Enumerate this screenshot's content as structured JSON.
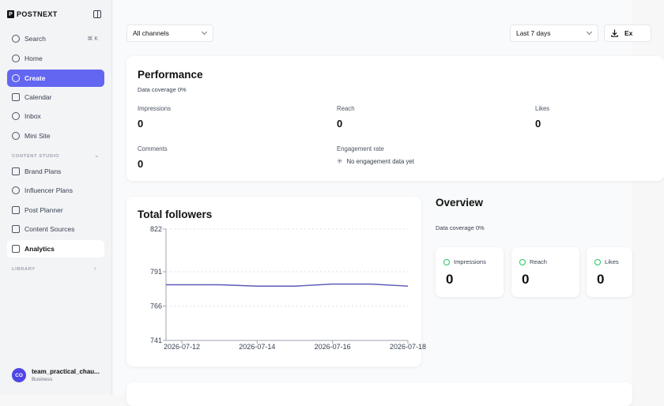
{
  "brand": {
    "mark": "P",
    "name": "POSTNEXT"
  },
  "sidebar": {
    "search": {
      "label": "Search",
      "shortcut": "⌘ K"
    },
    "items": [
      {
        "label": "Home"
      },
      {
        "label": "Create"
      },
      {
        "label": "Calendar"
      },
      {
        "label": "Inbox"
      },
      {
        "label": "Mini Site"
      }
    ],
    "content_studio_label": "CONTENT STUDIO",
    "studio_items": [
      {
        "label": "Brand Plans"
      },
      {
        "label": "Influencer Plans"
      },
      {
        "label": "Post Planner"
      },
      {
        "label": "Content Sources"
      },
      {
        "label": "Analytics"
      }
    ],
    "library_label": "LIBRARY",
    "user": {
      "initials": "CO",
      "name": "team_practical_chau...",
      "plan": "Business"
    }
  },
  "filters": {
    "channels": "All channels",
    "range": "Last 7 days",
    "export_label": "Ex"
  },
  "performance": {
    "title": "Performance",
    "coverage": "Data coverage 0%",
    "metrics": [
      {
        "label": "Impressions",
        "value": "0"
      },
      {
        "label": "Reach",
        "value": "0"
      },
      {
        "label": "Likes",
        "value": "0"
      },
      {
        "label": "Comments",
        "value": "0"
      },
      {
        "label": "Engagement rate",
        "value": "No engagement data yet"
      }
    ]
  },
  "followers": {
    "title": "Total followers"
  },
  "overview": {
    "title": "Overview",
    "coverage": "Data coverage 0%",
    "cards": [
      {
        "label": "Impressions",
        "value": "0"
      },
      {
        "label": "Reach",
        "value": "0"
      },
      {
        "label": "Likes",
        "value": "0"
      }
    ]
  },
  "colors": {
    "accent": "#6366f1",
    "line": "#5b5bb8",
    "positive": "#22c55e"
  },
  "chart_data": {
    "type": "line",
    "title": "Total followers",
    "x": [
      "2026-07-12",
      "2026-07-13",
      "2026-07-14",
      "2026-07-15",
      "2026-07-16",
      "2026-07-17",
      "2026-07-18"
    ],
    "x_ticks": [
      "2026-07-12",
      "2026-07-14",
      "2026-07-16",
      "2026-07-18"
    ],
    "series": [
      {
        "values": [
          781.5,
          781.5,
          780.5,
          780.5,
          782,
          782,
          780.5
        ]
      }
    ],
    "y_ticks": [
      741,
      766,
      791,
      822
    ],
    "ylim": [
      741,
      822
    ],
    "grid": true
  }
}
